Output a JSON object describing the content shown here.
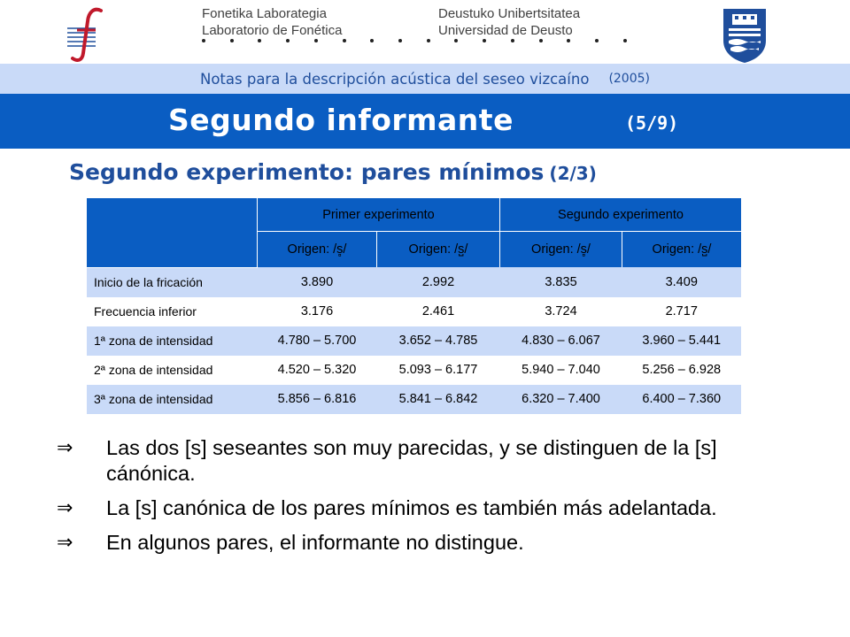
{
  "header": {
    "left_institution": [
      "Fonetika Laborategia",
      "Laboratorio de Fonética"
    ],
    "right_institution": [
      "Deustuko Unibertsitatea",
      "Universidad de Deusto"
    ],
    "dot_count": 16,
    "left_logo_icon": "phonetics-lab-f-logo-icon",
    "right_logo_icon": "university-shield-icon",
    "logo_color": "#1f4e9c"
  },
  "subtitle": {
    "text": "Notas para la descripción acústica del seseo vizcaíno",
    "year": "(2005)"
  },
  "title": {
    "main": "Segundo informante",
    "page": "(5/9)"
  },
  "section": {
    "title": "Segundo experimento: pares mínimos",
    "part": "(2/3)"
  },
  "table": {
    "groups": [
      "Primer experimento",
      "Segundo experimento"
    ],
    "origins": [
      "Origen: /s̻/",
      "Origen: /s̺/",
      "Origen: /s̻/",
      "Origen: /s̺/"
    ],
    "rows": [
      {
        "label": "Inicio de la fricación",
        "values": [
          "3.890",
          "2.992",
          "3.835",
          "3.409"
        ]
      },
      {
        "label": "Frecuencia inferior",
        "values": [
          "3.176",
          "2.461",
          "3.724",
          "2.717"
        ]
      },
      {
        "label": "1ª zona de intensidad",
        "values": [
          "4.780 – 5.700",
          "3.652 – 4.785",
          "4.830 – 6.067",
          "3.960 – 5.441"
        ]
      },
      {
        "label": "2ª zona de intensidad",
        "values": [
          "4.520 – 5.320",
          "5.093 – 6.177",
          "5.940 – 7.040",
          "5.256 – 6.928"
        ]
      },
      {
        "label": "3ª zona de intensidad",
        "values": [
          "5.856 – 6.816",
          "5.841 – 6.842",
          "6.320 – 7.400",
          "6.400 – 7.360"
        ]
      }
    ],
    "colors": {
      "header": "#0a5dc2",
      "band": "#c9daf8"
    }
  },
  "bullets": {
    "marker": "⇒",
    "items": [
      "Las dos [s] seseantes son muy parecidas, y se distinguen de la [s] cánónica.",
      "La [s] canónica de los pares mínimos es también más adelantada.",
      "En algunos pares, el informante no distingue."
    ]
  }
}
